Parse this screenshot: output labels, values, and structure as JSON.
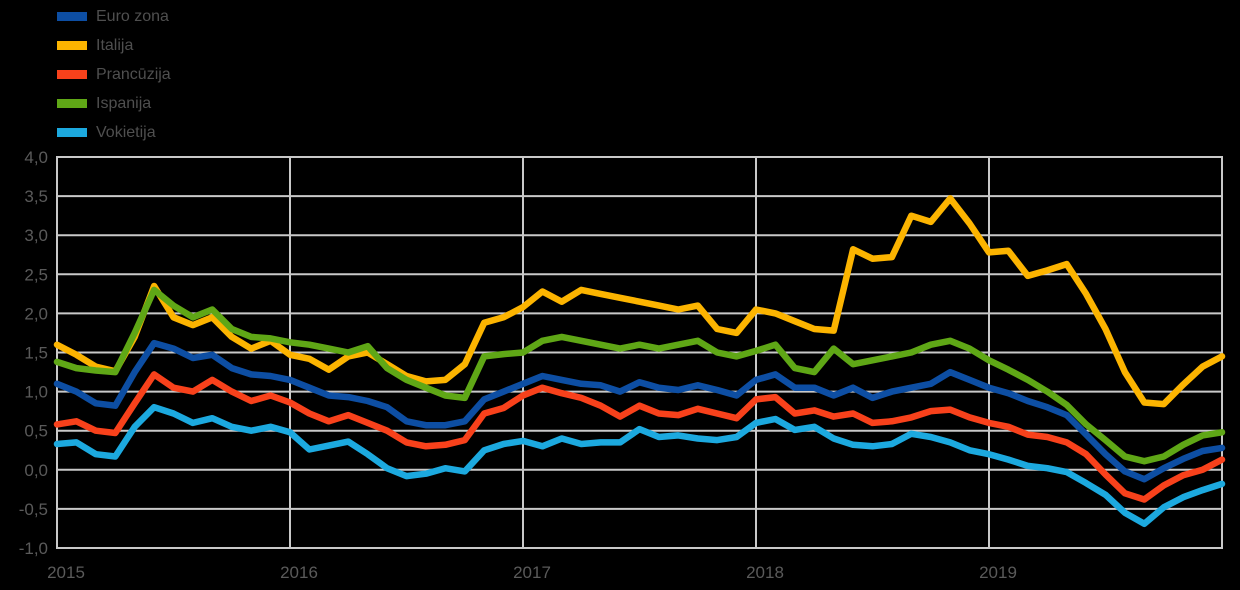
{
  "chart_data": {
    "type": "line",
    "title": "",
    "x_range": {
      "start": "2015-01",
      "end": "2020-01",
      "interval": "month"
    },
    "x_tick_labels": [
      "2015",
      "2016",
      "2017",
      "2018",
      "2019"
    ],
    "y_tick_labels": [
      "4,0",
      "3,5",
      "3,0",
      "2,5",
      "2,0",
      "1,5",
      "1,0",
      "0,5",
      "0,0",
      "-0,5",
      "-1,0"
    ],
    "y_tick_values": [
      4.0,
      3.5,
      3.0,
      2.5,
      2.0,
      1.5,
      1.0,
      0.5,
      0.0,
      -0.5,
      -1.0
    ],
    "ylim": [
      -1.0,
      4.0
    ],
    "grid": true,
    "legend_position": "top-left",
    "colors": {
      "background": "#000000",
      "gridline": "#c9c9c9",
      "axis_text": "#5a5a5a",
      "legend_text": "#4f4f4f"
    },
    "series": [
      {
        "name": "Euro zona",
        "color": "#0d4ea3",
        "values": [
          1.1,
          1.0,
          0.85,
          0.82,
          1.25,
          1.62,
          1.55,
          1.43,
          1.47,
          1.3,
          1.22,
          1.2,
          1.15,
          1.05,
          0.95,
          0.93,
          0.88,
          0.8,
          0.62,
          0.57,
          0.57,
          0.62,
          0.9,
          1.0,
          1.1,
          1.2,
          1.15,
          1.1,
          1.08,
          1.0,
          1.12,
          1.05,
          1.02,
          1.08,
          1.02,
          0.95,
          1.15,
          1.22,
          1.05,
          1.05,
          0.95,
          1.05,
          0.92,
          1.0,
          1.05,
          1.1,
          1.25,
          1.15,
          1.05,
          0.98,
          0.88,
          0.8,
          0.7,
          0.45,
          0.2,
          -0.02,
          -0.12,
          0.02,
          0.14,
          0.24,
          0.28
        ]
      },
      {
        "name": "Italija",
        "color": "#fcb400",
        "values": [
          1.6,
          1.47,
          1.32,
          1.26,
          1.7,
          2.35,
          1.95,
          1.85,
          1.95,
          1.7,
          1.55,
          1.65,
          1.47,
          1.42,
          1.28,
          1.45,
          1.5,
          1.35,
          1.2,
          1.13,
          1.15,
          1.35,
          1.88,
          1.95,
          2.08,
          2.28,
          2.15,
          2.3,
          2.25,
          2.2,
          2.15,
          2.1,
          2.05,
          2.1,
          1.8,
          1.75,
          2.05,
          2.0,
          1.9,
          1.8,
          1.78,
          2.82,
          2.7,
          2.72,
          3.25,
          3.17,
          3.47,
          3.15,
          2.78,
          2.8,
          2.48,
          2.55,
          2.63,
          2.25,
          1.8,
          1.25,
          0.86,
          0.84,
          1.09,
          1.32,
          1.45
        ]
      },
      {
        "name": "Prancūzija",
        "color": "#f8411b",
        "values": [
          0.58,
          0.62,
          0.5,
          0.47,
          0.85,
          1.22,
          1.05,
          1.0,
          1.15,
          1.0,
          0.88,
          0.95,
          0.86,
          0.72,
          0.62,
          0.7,
          0.6,
          0.5,
          0.35,
          0.3,
          0.32,
          0.38,
          0.72,
          0.79,
          0.95,
          1.05,
          0.98,
          0.92,
          0.82,
          0.68,
          0.82,
          0.72,
          0.7,
          0.78,
          0.72,
          0.66,
          0.9,
          0.93,
          0.72,
          0.76,
          0.68,
          0.72,
          0.6,
          0.62,
          0.67,
          0.75,
          0.77,
          0.67,
          0.6,
          0.55,
          0.45,
          0.42,
          0.35,
          0.2,
          -0.06,
          -0.3,
          -0.38,
          -0.2,
          -0.07,
          0.0,
          0.13
        ]
      },
      {
        "name": "Ispanija",
        "color": "#5fa716",
        "values": [
          1.38,
          1.3,
          1.27,
          1.25,
          1.75,
          2.3,
          2.1,
          1.95,
          2.05,
          1.8,
          1.7,
          1.68,
          1.63,
          1.6,
          1.55,
          1.5,
          1.58,
          1.3,
          1.15,
          1.05,
          0.95,
          0.92,
          1.45,
          1.48,
          1.5,
          1.65,
          1.7,
          1.65,
          1.6,
          1.55,
          1.6,
          1.55,
          1.6,
          1.65,
          1.5,
          1.45,
          1.52,
          1.6,
          1.3,
          1.25,
          1.55,
          1.35,
          1.4,
          1.45,
          1.5,
          1.6,
          1.65,
          1.55,
          1.4,
          1.28,
          1.15,
          1.0,
          0.83,
          0.58,
          0.38,
          0.17,
          0.11,
          0.17,
          0.32,
          0.44,
          0.48
        ]
      },
      {
        "name": "Vokietija",
        "color": "#1ca9df",
        "values": [
          0.33,
          0.35,
          0.2,
          0.17,
          0.55,
          0.8,
          0.72,
          0.6,
          0.66,
          0.55,
          0.5,
          0.55,
          0.48,
          0.26,
          0.31,
          0.36,
          0.2,
          0.02,
          -0.08,
          -0.05,
          0.02,
          -0.02,
          0.25,
          0.33,
          0.37,
          0.3,
          0.4,
          0.33,
          0.35,
          0.35,
          0.52,
          0.42,
          0.44,
          0.4,
          0.38,
          0.42,
          0.6,
          0.65,
          0.51,
          0.55,
          0.4,
          0.32,
          0.3,
          0.33,
          0.46,
          0.42,
          0.35,
          0.25,
          0.2,
          0.13,
          0.05,
          0.02,
          -0.03,
          -0.17,
          -0.32,
          -0.55,
          -0.69,
          -0.48,
          -0.35,
          -0.26,
          -0.18
        ]
      }
    ]
  }
}
